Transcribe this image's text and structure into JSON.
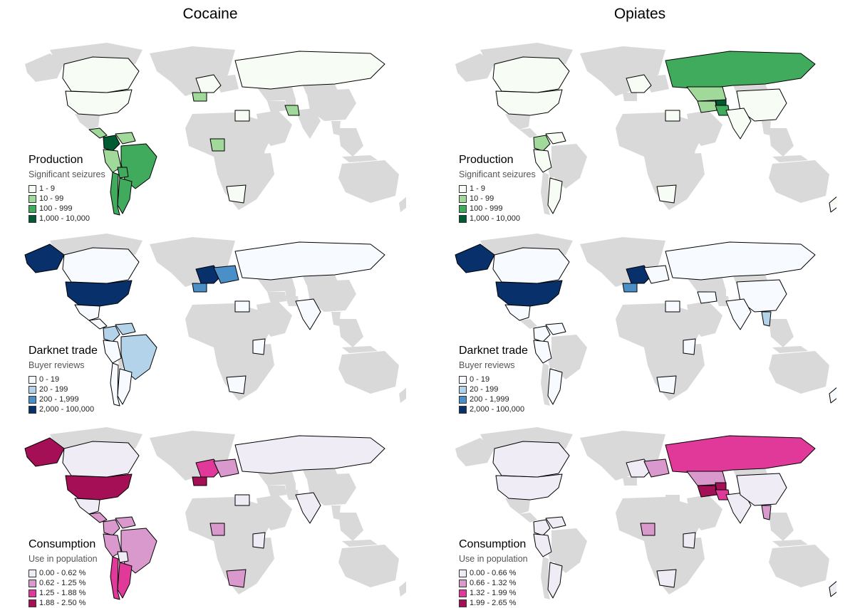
{
  "columns": [
    {
      "title": "Cocaine"
    },
    {
      "title": "Opiates"
    }
  ],
  "colors": {
    "land": "#d9d9d9",
    "border": "#000000",
    "production": [
      "#f7fcf5",
      "#a1d99b",
      "#41ab5d",
      "#005a32"
    ],
    "darknet": [
      "#f7fbff",
      "#b3d3ea",
      "#4a8fc8",
      "#08306b"
    ],
    "consumption": [
      "#f0ecf5",
      "#d999cc",
      "#e0399a",
      "#a50f55"
    ]
  },
  "panels": [
    {
      "id": "cocaine-production",
      "drug": "Cocaine",
      "theme": "production",
      "legend": {
        "title": "Production",
        "subtitle": "Significant seizures",
        "items": [
          "1 - 9",
          "10 - 99",
          "100 - 999",
          "1,000 - 10,000"
        ]
      },
      "regions": {
        "usa": 0,
        "canada": 0,
        "central-america": 1,
        "colombia": 3,
        "venezuela": 1,
        "peru": 1,
        "brazil": 2,
        "bolivia": 2,
        "argentina": 2,
        "chile": 2,
        "western-europe": 0,
        "spain": 1,
        "russia": 0,
        "egypt": 0,
        "nigeria": 1,
        "pakistan": 1,
        "south-africa": 0
      }
    },
    {
      "id": "opiates-production",
      "drug": "Opiates",
      "theme": "production",
      "legend": {
        "title": "Production",
        "subtitle": "Significant seizures",
        "items": [
          "1 - 9",
          "10 - 99",
          "100 - 999",
          "1,000 - 10,000"
        ]
      },
      "regions": {
        "usa": 0,
        "canada": 0,
        "colombia": 1,
        "venezuela": 0,
        "peru": 0,
        "argentina": 0,
        "western-europe": 0,
        "russia": 2,
        "iran": 1,
        "afghanistan": 3,
        "pakistan": 2,
        "central-asia": 1,
        "china": 0,
        "india": 0,
        "egypt": 0,
        "south-africa": 0,
        "new-zealand": 0
      }
    },
    {
      "id": "cocaine-darknet",
      "drug": "Cocaine",
      "theme": "darknet",
      "legend": {
        "title": "Darknet trade",
        "subtitle": "Buyer reviews",
        "items": [
          "0 - 19",
          "20 - 199",
          "200 - 1,999",
          "2,000 - 100,000"
        ]
      },
      "regions": {
        "usa": 3,
        "alaska": 3,
        "canada": 0,
        "mexico": 0,
        "central-america": 0,
        "colombia": 1,
        "venezuela": 1,
        "brazil": 1,
        "peru": 0,
        "argentina": 0,
        "chile": 0,
        "western-europe": 3,
        "spain": 2,
        "central-europe": 2,
        "russia": 0,
        "egypt": 0,
        "east-africa": 0,
        "south-africa": 0,
        "india": 0
      }
    },
    {
      "id": "opiates-darknet",
      "drug": "Opiates",
      "theme": "darknet",
      "legend": {
        "title": "Darknet trade",
        "subtitle": "Buyer reviews",
        "items": [
          "0 - 19",
          "20 - 199",
          "200 - 1,999",
          "2,000 - 100,000"
        ]
      },
      "regions": {
        "usa": 3,
        "alaska": 3,
        "canada": 0,
        "mexico": 0,
        "colombia": 0,
        "venezuela": 0,
        "peru": 0,
        "argentina": 0,
        "western-europe": 3,
        "spain": 2,
        "central-europe": 0,
        "russia": 0,
        "china": 0,
        "india": 0,
        "iran": 0,
        "thailand": 1,
        "egypt": 0,
        "east-africa": 0,
        "south-africa": 0,
        "new-zealand": 0
      }
    },
    {
      "id": "cocaine-consumption",
      "drug": "Cocaine",
      "theme": "consumption",
      "legend": {
        "title": "Consumption",
        "subtitle": "Use in population",
        "items": [
          "0.00 - 0.62 %",
          "0.62 - 1.25 %",
          "1.25 - 1.88 %",
          "1.88 - 2.50 %"
        ]
      },
      "regions": {
        "usa": 3,
        "alaska": 3,
        "canada": 0,
        "mexico": 0,
        "central-america": 1,
        "colombia": 1,
        "venezuela": 1,
        "brazil": 1,
        "peru": 1,
        "bolivia": 0,
        "argentina": 2,
        "chile": 2,
        "western-europe": 2,
        "spain": 3,
        "central-europe": 1,
        "russia": 0,
        "egypt": 0,
        "nigeria": 1,
        "east-africa": 0,
        "south-africa": 1,
        "india": 0
      }
    },
    {
      "id": "opiates-consumption",
      "drug": "Opiates",
      "theme": "consumption",
      "legend": {
        "title": "Consumption",
        "subtitle": "Use in population",
        "items": [
          "0.00 - 0.66 %",
          "0.66 - 1.32 %",
          "1.32 - 1.99 %",
          "1.99 - 2.65 %"
        ]
      },
      "regions": {
        "usa": 0,
        "canada": 0,
        "colombia": 0,
        "venezuela": 0,
        "peru": 0,
        "argentina": 0,
        "western-europe": 0,
        "central-europe": 1,
        "russia": 2,
        "central-asia": 1,
        "iran": 3,
        "afghanistan": 3,
        "pakistan": 2,
        "india": 0,
        "thailand": 1,
        "china": 0,
        "nigeria": 1,
        "east-africa": 0,
        "south-africa": 0,
        "new-zealand": 0
      }
    }
  ]
}
